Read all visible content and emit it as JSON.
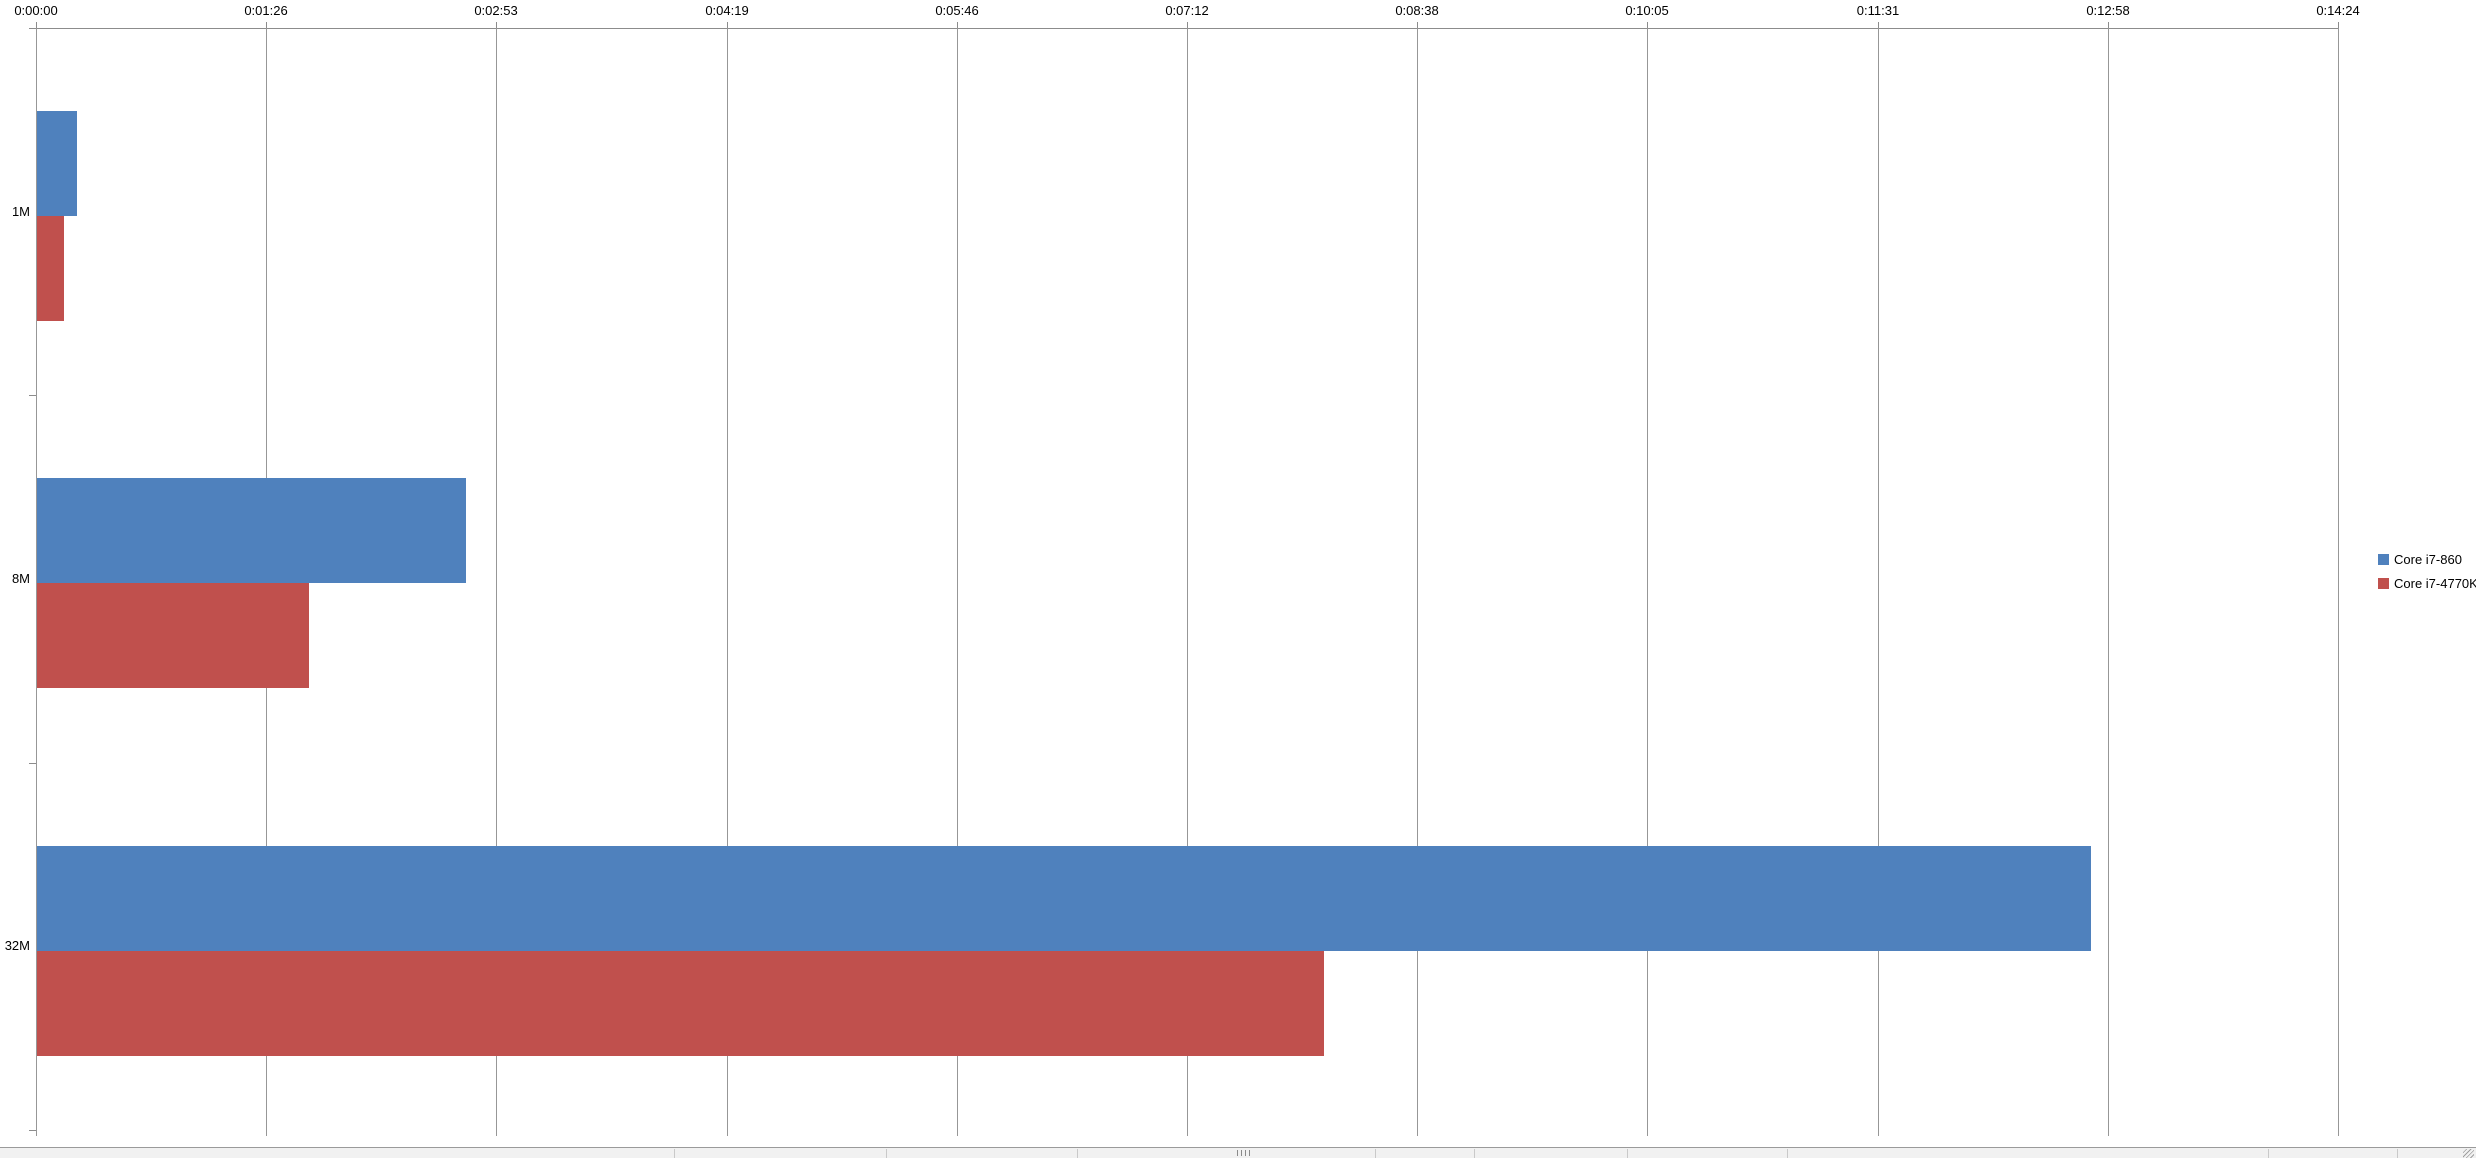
{
  "chart_data": {
    "type": "bar",
    "orientation": "horizontal",
    "title": "",
    "xlabel": "",
    "ylabel": "",
    "grid": true,
    "categories": [
      "1M",
      "8M",
      "32M"
    ],
    "series": [
      {
        "name": "Core i7-860",
        "color": "#4F81BD",
        "values_seconds": [
          15,
          161,
          771
        ],
        "values_time": [
          "0:00:15",
          "0:02:41",
          "0:12:51"
        ]
      },
      {
        "name": "Core i7-4770K",
        "color": "#C0504D",
        "values_seconds": [
          10,
          102,
          483
        ],
        "values_time": [
          "0:00:10",
          "0:01:42",
          "0:08:03"
        ]
      }
    ],
    "x_axis": {
      "position": "top",
      "ticks": [
        "0:00:00",
        "0:01:26",
        "0:02:53",
        "0:04:19",
        "0:05:46",
        "0:07:12",
        "0:08:38",
        "0:10:05",
        "0:11:31",
        "0:12:58",
        "0:14:24"
      ],
      "min_seconds": 0,
      "max_seconds": 864,
      "tick_interval_seconds": 86.4
    },
    "legend": {
      "position": "right",
      "entries": [
        "Core i7-860",
        "Core i7-4770K"
      ]
    }
  },
  "colors": {
    "series_blue": "#4F81BD",
    "series_red": "#C0504D",
    "gridline": "#979797",
    "axis": "#8C8C8C",
    "statusbar_bg": "#F1F1F1"
  },
  "statusbar": {
    "grip_icon": "resize-grip-icon",
    "dots_icon": "scrollbar-dots-icon"
  }
}
